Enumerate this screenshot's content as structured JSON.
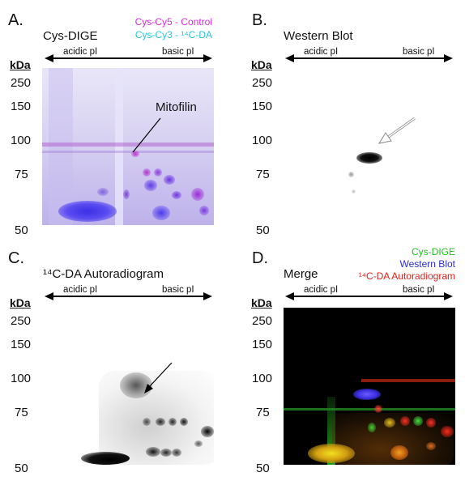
{
  "panels": {
    "a": {
      "letter": "A.",
      "title": "Cys-DIGE",
      "legend": [
        {
          "text": "Cys-Cy5 - Control",
          "color": "#d62ad6"
        },
        {
          "text": "Cys-Cy3 - ¹⁴C-DA",
          "color": "#25c6d6"
        }
      ],
      "annotation": "Mitofilin"
    },
    "b": {
      "letter": "B.",
      "title": "Western Blot"
    },
    "c": {
      "letter": "C.",
      "title": "¹⁴C-DA Autoradiogram"
    },
    "d": {
      "letter": "D.",
      "title": "Merge",
      "legend": [
        {
          "text": "Cys-DIGE",
          "color": "#1fc41f"
        },
        {
          "text": "Western Blot",
          "color": "#2c2cd4"
        },
        {
          "text": "¹⁴C-DA Autoradiogram",
          "color": "#e0231c"
        }
      ]
    }
  },
  "axis": {
    "acidic": "acidic pI",
    "basic": "basic pI",
    "unit": "kDa",
    "mw_ticks": [
      "250",
      "150",
      "100",
      "75",
      "50"
    ]
  }
}
